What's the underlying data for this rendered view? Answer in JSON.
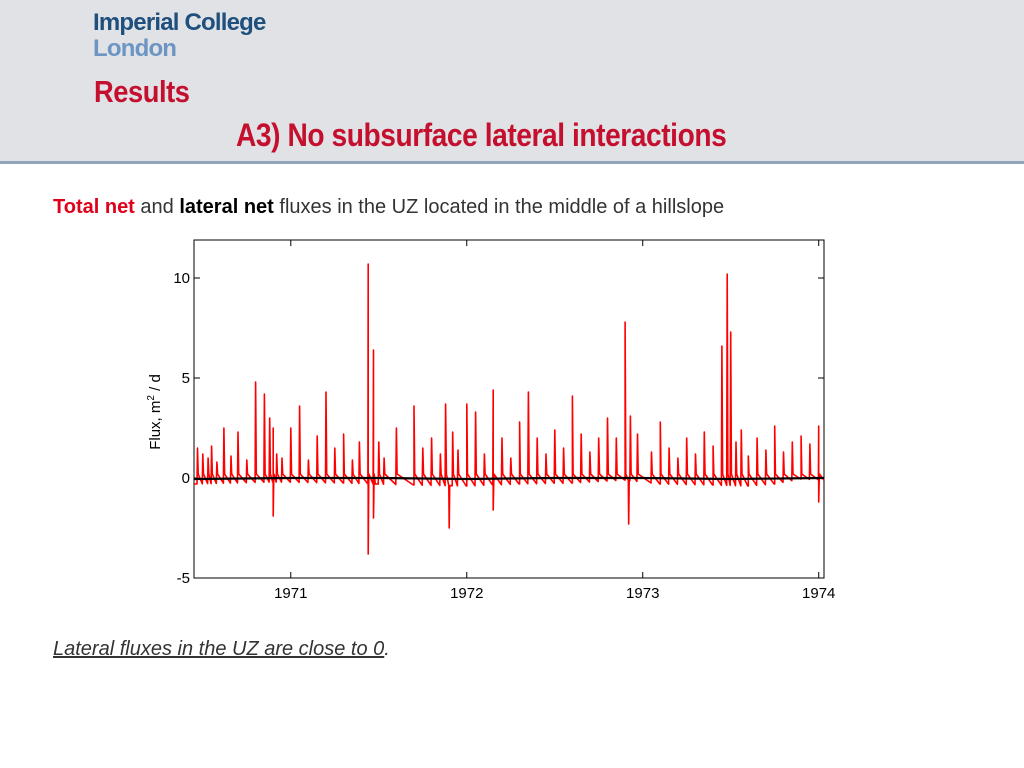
{
  "header": {
    "logo_line1": "Imperial College",
    "logo_line2": "London",
    "title": "Results",
    "subtitle": "A3) No subsurface lateral interactions"
  },
  "intro": {
    "part1": "Total net",
    "part2": " and ",
    "part3": "lateral net",
    "part4": " fluxes in the UZ located in the middle of a hillslope"
  },
  "conclusion": {
    "text": "Lateral fluxes in the UZ are close to 0",
    "period": "."
  },
  "colors": {
    "title_red": "#c4102e",
    "total_net_series": "#ff0000",
    "lateral_net_series": "#000000",
    "header_bg": "#e1e2e6",
    "logo_dark": "#1f4f7d",
    "logo_light": "#6c95c3"
  },
  "chart_data": {
    "type": "line",
    "title": "",
    "xlabel": "",
    "ylabel": "Flux, m2 / d",
    "ylabel_main": "Flux, m",
    "ylabel_sup": "2",
    "ylabel_tail": " / d",
    "xlim": [
      1970.45,
      1974.03
    ],
    "ylim": [
      -5,
      11.9
    ],
    "x_ticks": [
      1971,
      1972,
      1973,
      1974
    ],
    "x_tick_labels": [
      "1971",
      "1972",
      "1973",
      "1974"
    ],
    "y_ticks": [
      -5,
      0,
      5,
      10
    ],
    "y_tick_labels": [
      "-5",
      "0",
      "5",
      "10"
    ],
    "grid": false,
    "legend": "none",
    "series": [
      {
        "color": "#ff0000",
        "baseline_x": [
          1970.45,
          1970.9,
          1971.3,
          1971.48,
          1971.7,
          1972.0,
          1972.3,
          1972.6,
          1972.9,
          1973.1,
          1973.4,
          1973.6,
          1973.75,
          1973.9,
          1974.03
        ],
        "baseline_y": [
          -0.3,
          -0.2,
          -0.25,
          -0.3,
          -0.35,
          -0.4,
          -0.3,
          -0.25,
          -0.1,
          -0.3,
          -0.35,
          -0.4,
          -0.3,
          -0.05,
          -0.1
        ],
        "spikes_x": [
          1970.47,
          1970.5,
          1970.53,
          1970.55,
          1970.58,
          1970.62,
          1970.66,
          1970.7,
          1970.75,
          1970.8,
          1970.85,
          1970.88,
          1970.9,
          1970.92,
          1970.95,
          1971.0,
          1971.05,
          1971.1,
          1971.15,
          1971.2,
          1971.25,
          1971.3,
          1971.35,
          1971.39,
          1971.44,
          1971.47,
          1971.5,
          1971.53,
          1971.6,
          1971.7,
          1971.75,
          1971.8,
          1971.85,
          1971.88,
          1971.92,
          1971.95,
          1972.0,
          1972.05,
          1972.1,
          1972.15,
          1972.2,
          1972.25,
          1972.3,
          1972.35,
          1972.4,
          1972.45,
          1972.5,
          1972.55,
          1972.6,
          1972.65,
          1972.7,
          1972.75,
          1972.8,
          1972.85,
          1972.9,
          1972.93,
          1972.97,
          1973.05,
          1973.1,
          1973.15,
          1973.2,
          1973.25,
          1973.3,
          1973.35,
          1973.4,
          1973.45,
          1973.48,
          1973.5,
          1973.53,
          1973.56,
          1973.6,
          1973.65,
          1973.7,
          1973.75,
          1973.8,
          1973.85,
          1973.9,
          1973.95,
          1974.0
        ],
        "spikes_y": [
          1.5,
          1.2,
          1.0,
          1.6,
          0.8,
          2.5,
          1.1,
          2.3,
          0.9,
          4.8,
          4.2,
          3.0,
          2.5,
          1.2,
          1.0,
          2.5,
          3.6,
          0.9,
          2.1,
          4.3,
          1.5,
          2.2,
          0.9,
          1.8,
          10.7,
          6.4,
          1.8,
          1.0,
          2.5,
          3.6,
          1.5,
          2.0,
          1.2,
          3.7,
          2.3,
          1.4,
          3.7,
          3.3,
          1.2,
          4.4,
          2.0,
          1.0,
          2.8,
          4.3,
          2.0,
          1.2,
          2.4,
          1.5,
          4.1,
          2.2,
          1.3,
          2.0,
          3.0,
          2.0,
          7.8,
          3.1,
          2.2,
          1.3,
          2.8,
          1.5,
          1.0,
          2.0,
          1.2,
          2.3,
          1.6,
          6.6,
          10.2,
          7.3,
          1.8,
          2.4,
          1.1,
          2.0,
          1.4,
          2.6,
          1.3,
          1.8,
          2.1,
          1.7,
          2.6
        ],
        "dips_x": [
          1970.9,
          1971.44,
          1971.47,
          1971.9,
          1972.15,
          1972.92,
          1974.0
        ],
        "dips_y": [
          -1.9,
          -3.8,
          -2.0,
          -2.5,
          -1.6,
          -2.3,
          -1.2
        ]
      },
      {
        "color": "#000000",
        "x": [
          1970.45,
          1971.0,
          1971.5,
          1972.0,
          1972.5,
          1973.0,
          1973.5,
          1974.03
        ],
        "y": [
          -0.05,
          0.0,
          0.0,
          -0.05,
          0.0,
          0.0,
          -0.05,
          0.0
        ]
      }
    ]
  }
}
